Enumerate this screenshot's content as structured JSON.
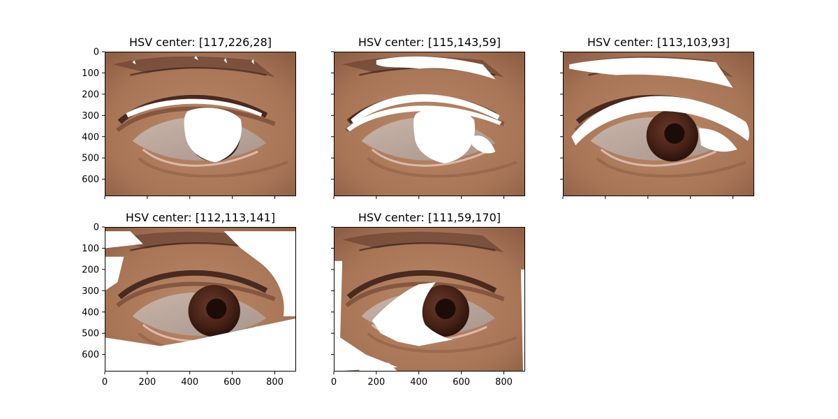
{
  "chart_data": {
    "type": "image-grid",
    "image_size": {
      "width": 900,
      "height": 680
    },
    "x_ticks": [
      0,
      200,
      400,
      600,
      800
    ],
    "y_ticks": [
      0,
      100,
      200,
      300,
      400,
      500,
      600
    ],
    "shared_axes": true,
    "panels": [
      {
        "title": "HSV center: [117,226,28]",
        "hsv_center": [
          117,
          226,
          28
        ],
        "masked_region": "darkest pixels: eyelid crease line and dark iris"
      },
      {
        "title": "HSV center: [115,143,59]",
        "hsv_center": [
          115,
          143,
          59
        ],
        "masked_region": "dark brown: crease, iris ring and eyebrow hairs"
      },
      {
        "title": "HSV center: [113,103,93]",
        "hsv_center": [
          113,
          103,
          93
        ],
        "masked_region": "medium brown: upper lid band, outer iris, hair streaks"
      },
      {
        "title": "HSV center: [112,113,141]",
        "hsv_center": [
          112,
          113,
          141
        ],
        "masked_region": "lighter brown skin: edges and right side"
      },
      {
        "title": "HSV center: [111,59,170]",
        "hsv_center": [
          111,
          59,
          170
        ],
        "masked_region": "light pixels: eye white (sclera)"
      }
    ]
  }
}
